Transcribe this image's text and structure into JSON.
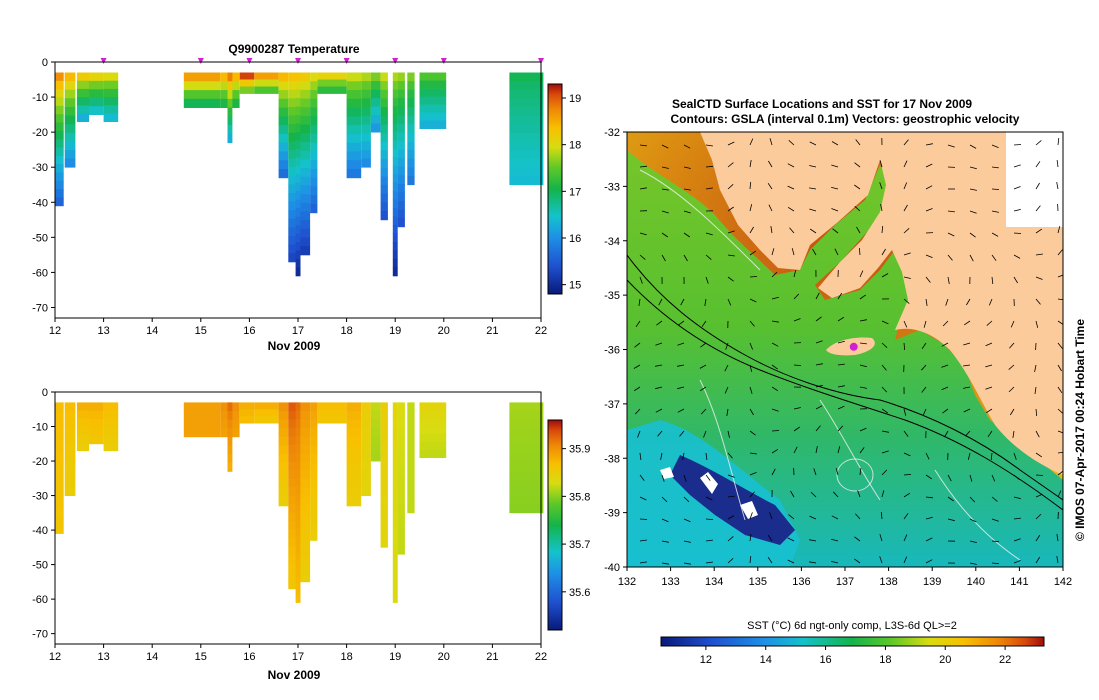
{
  "colors": {
    "land": "#fccb9c",
    "frame": "#000000",
    "marker": "#d020d0"
  },
  "chart_data": [
    {
      "type": "heatmap",
      "name": "profile-temperature",
      "title": "Q9900287  Temperature",
      "xlabel": "Nov 2009",
      "x_ticks": [
        "12",
        "13",
        "14",
        "15",
        "16",
        "17",
        "18",
        "19",
        "20",
        "21",
        "22"
      ],
      "xlim": [
        12,
        22
      ],
      "ylim": [
        -73,
        0
      ],
      "y_ticks": [
        "0",
        "-10",
        "-20",
        "-30",
        "-40",
        "-50",
        "-60",
        "-70"
      ],
      "profile_markers_day": [
        13,
        15,
        16,
        17,
        18,
        19,
        20,
        22
      ],
      "colorbar": {
        "ticks": [
          "19",
          "18",
          "17",
          "16",
          "15"
        ],
        "range": [
          14.8,
          19.3
        ]
      },
      "profiles": [
        {
          "day": 12.0,
          "width": 0.18,
          "depth": 41,
          "top_value": 18.7,
          "bottom_value": 15.6
        },
        {
          "day": 12.2,
          "width": 0.22,
          "depth": 30,
          "top_value": 18.4,
          "bottom_value": 16.0
        },
        {
          "day": 12.45,
          "width": 0.25,
          "depth": 17,
          "top_value": 18.2,
          "bottom_value": 16.3
        },
        {
          "day": 12.7,
          "width": 0.3,
          "depth": 15,
          "top_value": 18.1,
          "bottom_value": 16.5
        },
        {
          "day": 13.0,
          "width": 0.3,
          "depth": 17,
          "top_value": 18.0,
          "bottom_value": 16.4
        },
        {
          "day": 14.65,
          "width": 0.75,
          "depth": 13,
          "top_value": 18.6,
          "bottom_value": 17.0
        },
        {
          "day": 15.4,
          "width": 0.4,
          "depth": 13,
          "top_value": 18.4,
          "bottom_value": 17.1
        },
        {
          "day": 15.55,
          "width": 0.1,
          "depth": 23,
          "top_value": 18.8,
          "bottom_value": 16.3
        },
        {
          "day": 15.8,
          "width": 0.3,
          "depth": 9,
          "top_value": 19.1,
          "bottom_value": 17.6
        },
        {
          "day": 16.1,
          "width": 0.5,
          "depth": 9,
          "top_value": 18.6,
          "bottom_value": 17.4
        },
        {
          "day": 16.6,
          "width": 0.2,
          "depth": 33,
          "top_value": 18.4,
          "bottom_value": 15.7
        },
        {
          "day": 16.8,
          "width": 0.2,
          "depth": 57,
          "top_value": 18.3,
          "bottom_value": 15.3
        },
        {
          "day": 16.95,
          "width": 0.1,
          "depth": 61,
          "top_value": 18.3,
          "bottom_value": 15.0
        },
        {
          "day": 17.05,
          "width": 0.2,
          "depth": 55,
          "top_value": 18.2,
          "bottom_value": 15.2
        },
        {
          "day": 17.25,
          "width": 0.15,
          "depth": 43,
          "top_value": 18.0,
          "bottom_value": 15.6
        },
        {
          "day": 17.4,
          "width": 0.6,
          "depth": 9,
          "top_value": 18.1,
          "bottom_value": 17.2
        },
        {
          "day": 18.0,
          "width": 0.3,
          "depth": 33,
          "top_value": 17.9,
          "bottom_value": 15.8
        },
        {
          "day": 18.3,
          "width": 0.2,
          "depth": 30,
          "top_value": 17.8,
          "bottom_value": 16.0
        },
        {
          "day": 18.5,
          "width": 0.2,
          "depth": 20,
          "top_value": 17.6,
          "bottom_value": 16.1
        },
        {
          "day": 18.7,
          "width": 0.15,
          "depth": 45,
          "top_value": 17.9,
          "bottom_value": 15.4
        },
        {
          "day": 18.95,
          "width": 0.1,
          "depth": 61,
          "top_value": 17.8,
          "bottom_value": 15.0
        },
        {
          "day": 19.05,
          "width": 0.15,
          "depth": 47,
          "top_value": 17.7,
          "bottom_value": 15.4
        },
        {
          "day": 19.25,
          "width": 0.15,
          "depth": 35,
          "top_value": 17.6,
          "bottom_value": 15.8
        },
        {
          "day": 19.5,
          "width": 0.55,
          "depth": 19,
          "top_value": 17.4,
          "bottom_value": 16.3
        },
        {
          "day": 21.35,
          "width": 0.7,
          "depth": 35,
          "top_value": 17.0,
          "bottom_value": 16.4
        }
      ]
    },
    {
      "type": "heatmap",
      "name": "profile-salinity",
      "xlabel": "Nov 2009",
      "x_ticks": [
        "12",
        "13",
        "14",
        "15",
        "16",
        "17",
        "18",
        "19",
        "20",
        "21",
        "22"
      ],
      "xlim": [
        12,
        22
      ],
      "ylim": [
        -73,
        0
      ],
      "y_ticks": [
        "0",
        "-10",
        "-20",
        "-30",
        "-40",
        "-50",
        "-60",
        "-70"
      ],
      "colorbar": {
        "ticks": [
          "35.9",
          "35.8",
          "35.7",
          "35.6"
        ],
        "range": [
          35.52,
          35.96
        ]
      },
      "profiles": [
        {
          "day": 12.0,
          "width": 0.18,
          "depth": 41,
          "top_value": 35.87,
          "bottom_value": 35.86
        },
        {
          "day": 12.2,
          "width": 0.22,
          "depth": 30,
          "top_value": 35.87,
          "bottom_value": 35.85
        },
        {
          "day": 12.45,
          "width": 0.25,
          "depth": 17,
          "top_value": 35.88,
          "bottom_value": 35.85
        },
        {
          "day": 12.7,
          "width": 0.3,
          "depth": 15,
          "top_value": 35.88,
          "bottom_value": 35.86
        },
        {
          "day": 13.0,
          "width": 0.3,
          "depth": 17,
          "top_value": 35.87,
          "bottom_value": 35.85
        },
        {
          "day": 14.65,
          "width": 0.75,
          "depth": 13,
          "top_value": 35.89,
          "bottom_value": 35.89
        },
        {
          "day": 15.4,
          "width": 0.4,
          "depth": 13,
          "top_value": 35.9,
          "bottom_value": 35.89
        },
        {
          "day": 15.55,
          "width": 0.1,
          "depth": 23,
          "top_value": 35.92,
          "bottom_value": 35.88
        },
        {
          "day": 15.8,
          "width": 0.3,
          "depth": 9,
          "top_value": 35.88,
          "bottom_value": 35.87
        },
        {
          "day": 16.1,
          "width": 0.5,
          "depth": 9,
          "top_value": 35.88,
          "bottom_value": 35.86
        },
        {
          "day": 16.6,
          "width": 0.2,
          "depth": 33,
          "top_value": 35.9,
          "bottom_value": 35.85
        },
        {
          "day": 16.8,
          "width": 0.2,
          "depth": 57,
          "top_value": 35.93,
          "bottom_value": 35.86
        },
        {
          "day": 16.95,
          "width": 0.1,
          "depth": 61,
          "top_value": 35.92,
          "bottom_value": 35.87
        },
        {
          "day": 17.05,
          "width": 0.2,
          "depth": 55,
          "top_value": 35.9,
          "bottom_value": 35.85
        },
        {
          "day": 17.25,
          "width": 0.15,
          "depth": 43,
          "top_value": 35.89,
          "bottom_value": 35.85
        },
        {
          "day": 17.4,
          "width": 0.6,
          "depth": 9,
          "top_value": 35.87,
          "bottom_value": 35.86
        },
        {
          "day": 18.0,
          "width": 0.3,
          "depth": 33,
          "top_value": 35.88,
          "bottom_value": 35.85
        },
        {
          "day": 18.3,
          "width": 0.2,
          "depth": 30,
          "top_value": 35.85,
          "bottom_value": 35.84
        },
        {
          "day": 18.5,
          "width": 0.2,
          "depth": 20,
          "top_value": 35.82,
          "bottom_value": 35.81
        },
        {
          "day": 18.7,
          "width": 0.15,
          "depth": 45,
          "top_value": 35.85,
          "bottom_value": 35.84
        },
        {
          "day": 18.95,
          "width": 0.1,
          "depth": 61,
          "top_value": 35.84,
          "bottom_value": 35.83
        },
        {
          "day": 19.05,
          "width": 0.15,
          "depth": 47,
          "top_value": 35.83,
          "bottom_value": 35.82
        },
        {
          "day": 19.25,
          "width": 0.15,
          "depth": 35,
          "top_value": 35.82,
          "bottom_value": 35.82
        },
        {
          "day": 19.5,
          "width": 0.55,
          "depth": 19,
          "top_value": 35.84,
          "bottom_value": 35.82
        },
        {
          "day": 21.35,
          "width": 0.7,
          "depth": 35,
          "top_value": 35.81,
          "bottom_value": 35.8
        }
      ]
    },
    {
      "type": "heatmap",
      "name": "sst-map",
      "title": "SealCTD Surface Locations and SST for 17 Nov 2009",
      "subtitle": "Contours: GSLA (interval 0.1m) Vectors: geostrophic velocity",
      "x_ticks": [
        "132",
        "133",
        "134",
        "135",
        "136",
        "137",
        "138",
        "139",
        "140",
        "141",
        "142"
      ],
      "y_ticks": [
        "-32",
        "-33",
        "-34",
        "-35",
        "-36",
        "-37",
        "-38",
        "-39",
        "-40"
      ],
      "lon_range": [
        132,
        142
      ],
      "lat_range": [
        -40,
        -32
      ],
      "marker": {
        "lon": 137.2,
        "lat": -35.95
      },
      "side_label": "© IMOS 07-Apr-2017 00:24 Hobart Time",
      "colorbar": {
        "label": "SST (°C) 6d ngt-only comp, L3S-6d QL>=2",
        "ticks": [
          "12",
          "14",
          "16",
          "18",
          "20",
          "22"
        ],
        "range": [
          10.5,
          23.3
        ]
      }
    }
  ]
}
